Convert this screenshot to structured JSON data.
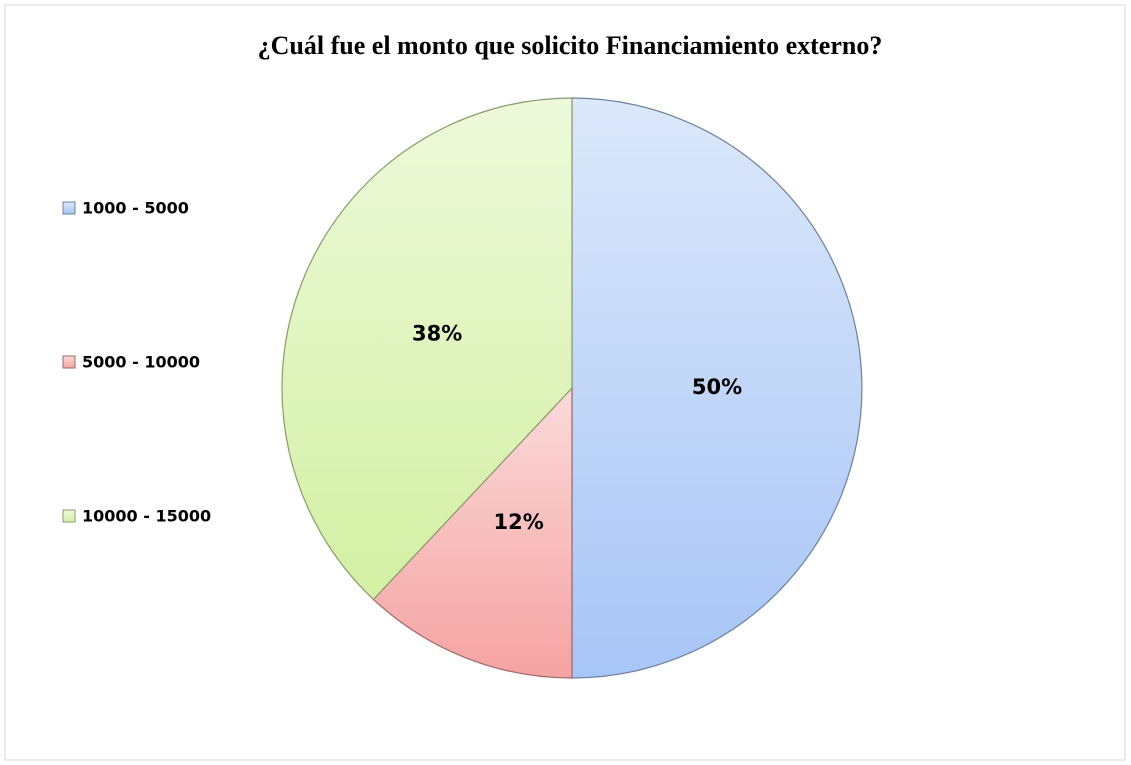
{
  "chart_data": {
    "type": "pie",
    "title": "¿Cuál fue el monto que solicito Financiamiento externo?",
    "categories": [
      "1000 - 5000",
      "5000 - 10000",
      "10000 - 15000"
    ],
    "values": [
      50,
      12,
      38
    ],
    "value_labels": [
      "50%",
      "12%",
      "38%"
    ],
    "colors": [
      "#a7c5f6",
      "#f5a3a2",
      "#d3f0a3"
    ],
    "legend": "left"
  }
}
